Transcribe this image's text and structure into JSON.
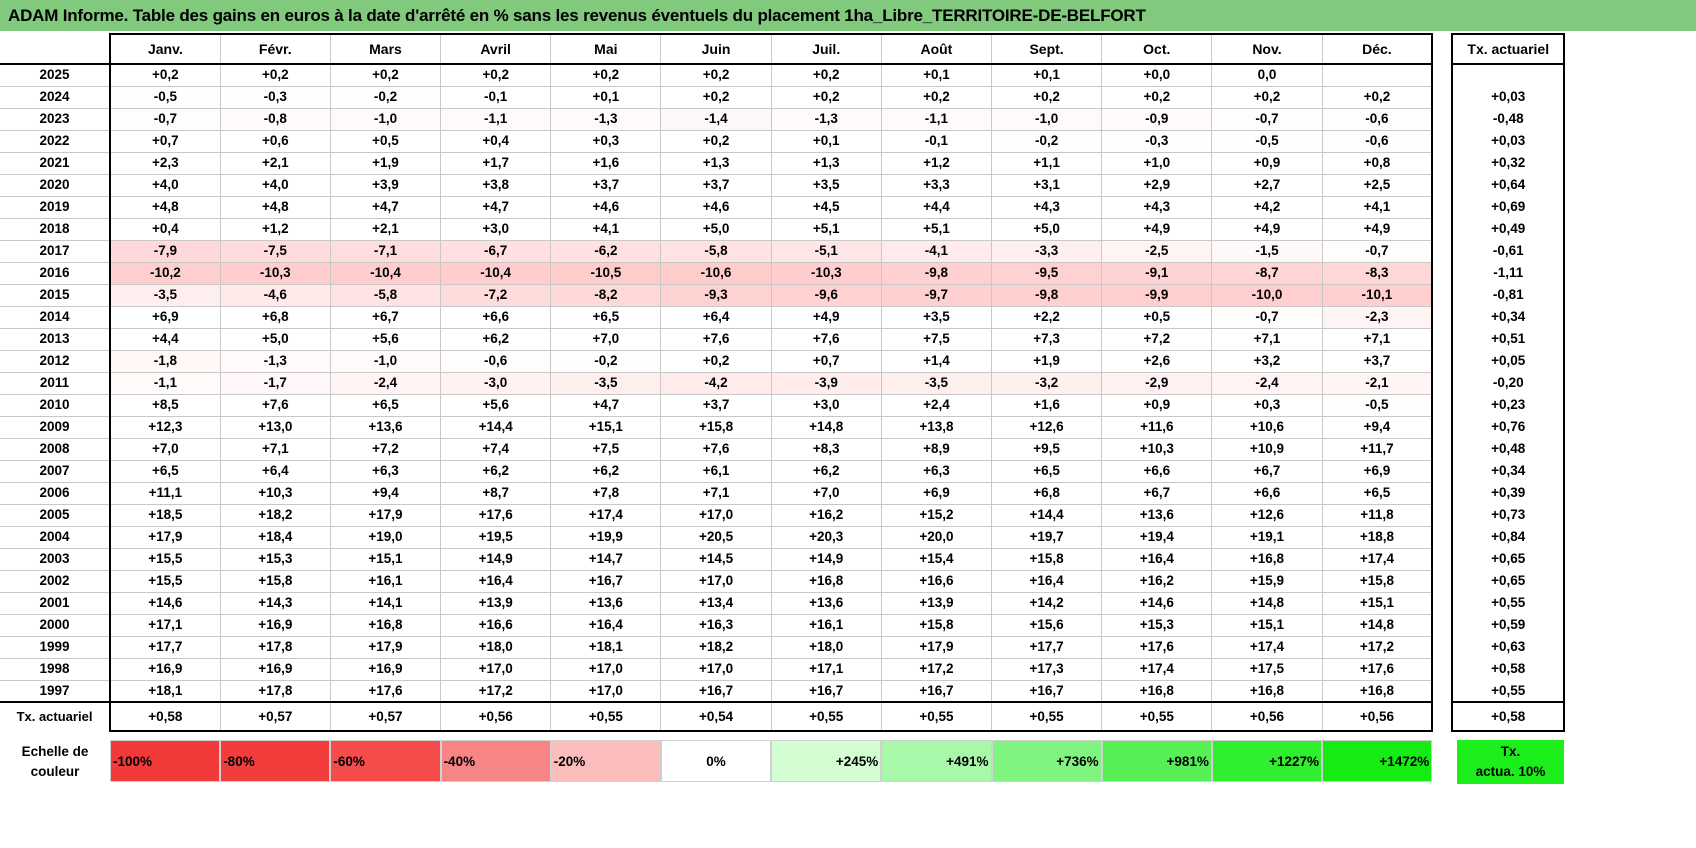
{
  "title": "ADAM Informe. Table des gains en euros à la date d'arrêté en % sans les revenus éventuels du placement 1ha_Libre_TERRITOIRE-DE-BELFORT",
  "header": {
    "months": [
      "Janv.",
      "Févr.",
      "Mars",
      "Avril",
      "Mai",
      "Juin",
      "Juil.",
      "Août",
      "Sept.",
      "Oct.",
      "Nov.",
      "Déc."
    ],
    "tx_label": "Tx. actuariel"
  },
  "rows": [
    {
      "year": "2025",
      "values": [
        "+0,2",
        "+0,2",
        "+0,2",
        "+0,2",
        "+0,2",
        "+0,2",
        "+0,2",
        "+0,1",
        "+0,1",
        "+0,0",
        "0,0",
        ""
      ],
      "tx": ""
    },
    {
      "year": "2024",
      "values": [
        "-0,5",
        "-0,3",
        "-0,2",
        "-0,1",
        "+0,1",
        "+0,2",
        "+0,2",
        "+0,2",
        "+0,2",
        "+0,2",
        "+0,2",
        "+0,2"
      ],
      "tx": "+0,03"
    },
    {
      "year": "2023",
      "values": [
        "-0,7",
        "-0,8",
        "-1,0",
        "-1,1",
        "-1,3",
        "-1,4",
        "-1,3",
        "-1,1",
        "-1,0",
        "-0,9",
        "-0,7",
        "-0,6"
      ],
      "tx": "-0,48"
    },
    {
      "year": "2022",
      "values": [
        "+0,7",
        "+0,6",
        "+0,5",
        "+0,4",
        "+0,3",
        "+0,2",
        "+0,1",
        "-0,1",
        "-0,2",
        "-0,3",
        "-0,5",
        "-0,6"
      ],
      "tx": "+0,03"
    },
    {
      "year": "2021",
      "values": [
        "+2,3",
        "+2,1",
        "+1,9",
        "+1,7",
        "+1,6",
        "+1,3",
        "+1,3",
        "+1,2",
        "+1,1",
        "+1,0",
        "+0,9",
        "+0,8"
      ],
      "tx": "+0,32"
    },
    {
      "year": "2020",
      "values": [
        "+4,0",
        "+4,0",
        "+3,9",
        "+3,8",
        "+3,7",
        "+3,7",
        "+3,5",
        "+3,3",
        "+3,1",
        "+2,9",
        "+2,7",
        "+2,5"
      ],
      "tx": "+0,64"
    },
    {
      "year": "2019",
      "values": [
        "+4,8",
        "+4,8",
        "+4,7",
        "+4,7",
        "+4,6",
        "+4,6",
        "+4,5",
        "+4,4",
        "+4,3",
        "+4,3",
        "+4,2",
        "+4,1"
      ],
      "tx": "+0,69"
    },
    {
      "year": "2018",
      "values": [
        "+0,4",
        "+1,2",
        "+2,1",
        "+3,0",
        "+4,1",
        "+5,0",
        "+5,1",
        "+5,1",
        "+5,0",
        "+4,9",
        "+4,9",
        "+4,9"
      ],
      "tx": "+0,49"
    },
    {
      "year": "2017",
      "values": [
        "-7,9",
        "-7,5",
        "-7,1",
        "-6,7",
        "-6,2",
        "-5,8",
        "-5,1",
        "-4,1",
        "-3,3",
        "-2,5",
        "-1,5",
        "-0,7"
      ],
      "tx": "-0,61"
    },
    {
      "year": "2016",
      "values": [
        "-10,2",
        "-10,3",
        "-10,4",
        "-10,4",
        "-10,5",
        "-10,6",
        "-10,3",
        "-9,8",
        "-9,5",
        "-9,1",
        "-8,7",
        "-8,3"
      ],
      "tx": "-1,11"
    },
    {
      "year": "2015",
      "values": [
        "-3,5",
        "-4,6",
        "-5,8",
        "-7,2",
        "-8,2",
        "-9,3",
        "-9,6",
        "-9,7",
        "-9,8",
        "-9,9",
        "-10,0",
        "-10,1"
      ],
      "tx": "-0,81"
    },
    {
      "year": "2014",
      "values": [
        "+6,9",
        "+6,8",
        "+6,7",
        "+6,6",
        "+6,5",
        "+6,4",
        "+4,9",
        "+3,5",
        "+2,2",
        "+0,5",
        "-0,7",
        "-2,3"
      ],
      "tx": "+0,34"
    },
    {
      "year": "2013",
      "values": [
        "+4,4",
        "+5,0",
        "+5,6",
        "+6,2",
        "+7,0",
        "+7,6",
        "+7,6",
        "+7,5",
        "+7,3",
        "+7,2",
        "+7,1",
        "+7,1"
      ],
      "tx": "+0,51"
    },
    {
      "year": "2012",
      "values": [
        "-1,8",
        "-1,3",
        "-1,0",
        "-0,6",
        "-0,2",
        "+0,2",
        "+0,7",
        "+1,4",
        "+1,9",
        "+2,6",
        "+3,2",
        "+3,7"
      ],
      "tx": "+0,05"
    },
    {
      "year": "2011",
      "values": [
        "-1,1",
        "-1,7",
        "-2,4",
        "-3,0",
        "-3,5",
        "-4,2",
        "-3,9",
        "-3,5",
        "-3,2",
        "-2,9",
        "-2,4",
        "-2,1"
      ],
      "tx": "-0,20"
    },
    {
      "year": "2010",
      "values": [
        "+8,5",
        "+7,6",
        "+6,5",
        "+5,6",
        "+4,7",
        "+3,7",
        "+3,0",
        "+2,4",
        "+1,6",
        "+0,9",
        "+0,3",
        "-0,5"
      ],
      "tx": "+0,23"
    },
    {
      "year": "2009",
      "values": [
        "+12,3",
        "+13,0",
        "+13,6",
        "+14,4",
        "+15,1",
        "+15,8",
        "+14,8",
        "+13,8",
        "+12,6",
        "+11,6",
        "+10,6",
        "+9,4"
      ],
      "tx": "+0,76"
    },
    {
      "year": "2008",
      "values": [
        "+7,0",
        "+7,1",
        "+7,2",
        "+7,4",
        "+7,5",
        "+7,6",
        "+8,3",
        "+8,9",
        "+9,5",
        "+10,3",
        "+10,9",
        "+11,7"
      ],
      "tx": "+0,48"
    },
    {
      "year": "2007",
      "values": [
        "+6,5",
        "+6,4",
        "+6,3",
        "+6,2",
        "+6,2",
        "+6,1",
        "+6,2",
        "+6,3",
        "+6,5",
        "+6,6",
        "+6,7",
        "+6,9"
      ],
      "tx": "+0,34"
    },
    {
      "year": "2006",
      "values": [
        "+11,1",
        "+10,3",
        "+9,4",
        "+8,7",
        "+7,8",
        "+7,1",
        "+7,0",
        "+6,9",
        "+6,8",
        "+6,7",
        "+6,6",
        "+6,5"
      ],
      "tx": "+0,39"
    },
    {
      "year": "2005",
      "values": [
        "+18,5",
        "+18,2",
        "+17,9",
        "+17,6",
        "+17,4",
        "+17,0",
        "+16,2",
        "+15,2",
        "+14,4",
        "+13,6",
        "+12,6",
        "+11,8"
      ],
      "tx": "+0,73"
    },
    {
      "year": "2004",
      "values": [
        "+17,9",
        "+18,4",
        "+19,0",
        "+19,5",
        "+19,9",
        "+20,5",
        "+20,3",
        "+20,0",
        "+19,7",
        "+19,4",
        "+19,1",
        "+18,8"
      ],
      "tx": "+0,84"
    },
    {
      "year": "2003",
      "values": [
        "+15,5",
        "+15,3",
        "+15,1",
        "+14,9",
        "+14,7",
        "+14,5",
        "+14,9",
        "+15,4",
        "+15,8",
        "+16,4",
        "+16,8",
        "+17,4"
      ],
      "tx": "+0,65"
    },
    {
      "year": "2002",
      "values": [
        "+15,5",
        "+15,8",
        "+16,1",
        "+16,4",
        "+16,7",
        "+17,0",
        "+16,8",
        "+16,6",
        "+16,4",
        "+16,2",
        "+15,9",
        "+15,8"
      ],
      "tx": "+0,65"
    },
    {
      "year": "2001",
      "values": [
        "+14,6",
        "+14,3",
        "+14,1",
        "+13,9",
        "+13,6",
        "+13,4",
        "+13,6",
        "+13,9",
        "+14,2",
        "+14,6",
        "+14,8",
        "+15,1"
      ],
      "tx": "+0,55"
    },
    {
      "year": "2000",
      "values": [
        "+17,1",
        "+16,9",
        "+16,8",
        "+16,6",
        "+16,4",
        "+16,3",
        "+16,1",
        "+15,8",
        "+15,6",
        "+15,3",
        "+15,1",
        "+14,8"
      ],
      "tx": "+0,59"
    },
    {
      "year": "1999",
      "values": [
        "+17,7",
        "+17,8",
        "+17,9",
        "+18,0",
        "+18,1",
        "+18,2",
        "+18,0",
        "+17,9",
        "+17,7",
        "+17,6",
        "+17,4",
        "+17,2"
      ],
      "tx": "+0,63"
    },
    {
      "year": "1998",
      "values": [
        "+16,9",
        "+16,9",
        "+16,9",
        "+17,0",
        "+17,0",
        "+17,0",
        "+17,1",
        "+17,2",
        "+17,3",
        "+17,4",
        "+17,5",
        "+17,6"
      ],
      "tx": "+0,58"
    },
    {
      "year": "1997",
      "values": [
        "+18,1",
        "+17,8",
        "+17,6",
        "+17,2",
        "+17,0",
        "+16,7",
        "+16,7",
        "+16,7",
        "+16,7",
        "+16,8",
        "+16,8",
        "+16,8"
      ],
      "tx": "+0,55"
    }
  ],
  "footer": {
    "label": "Tx. actuariel",
    "values": [
      "+0,58",
      "+0,57",
      "+0,57",
      "+0,56",
      "+0,55",
      "+0,54",
      "+0,55",
      "+0,55",
      "+0,55",
      "+0,55",
      "+0,56",
      "+0,56"
    ],
    "tx": "+0,58"
  },
  "legend": {
    "label_line1": "Echelle de",
    "label_line2": "couleur",
    "swatches": [
      {
        "label": "-100%",
        "color": "#f23a3a"
      },
      {
        "label": "-80%",
        "color": "#f33d3d"
      },
      {
        "label": "-60%",
        "color": "#f44b4b"
      },
      {
        "label": "-40%",
        "color": "#f78585"
      },
      {
        "label": "-20%",
        "color": "#fbbcbc"
      },
      {
        "label": "0%",
        "color": "#ffffff"
      },
      {
        "label": "+245%",
        "color": "#d3fdd3"
      },
      {
        "label": "+491%",
        "color": "#a9f8a9"
      },
      {
        "label": "+736%",
        "color": "#80f480"
      },
      {
        "label": "+981%",
        "color": "#56f056"
      },
      {
        "label": "+1227%",
        "color": "#30ee30"
      },
      {
        "label": "+1472%",
        "color": "#14ec14"
      }
    ],
    "tx_line1": "Tx.",
    "tx_line2": "actua. 10%",
    "tx_color": "#1cee1c"
  },
  "colors": {
    "title_bar": "#80c97d",
    "negative_tint": "#ff0000"
  }
}
